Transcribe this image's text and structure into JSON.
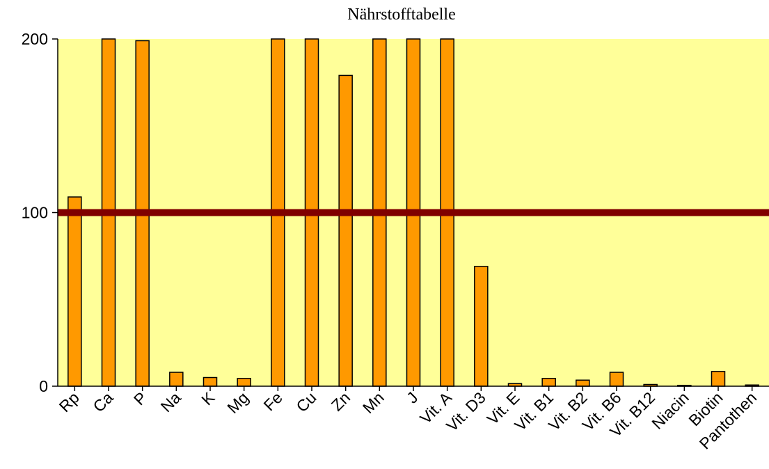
{
  "chart_data": {
    "type": "bar",
    "title": "Nährstofftabelle",
    "xlabel": "",
    "ylabel": "",
    "ylim": [
      0,
      200
    ],
    "yticks": [
      0,
      100,
      200
    ],
    "categories": [
      "Rp",
      "Ca",
      "P",
      "Na",
      "K",
      "Mg",
      "Fe",
      "Cu",
      "Zn",
      "Mn",
      "J",
      "Vit. A",
      "Vit. D3",
      "Vit. E",
      "Vit. B1",
      "Vit. B2",
      "Vit. B6",
      "Vit. B12",
      "Niacin",
      "Biotin",
      "Pantothen"
    ],
    "values": [
      109,
      200,
      199,
      8,
      5,
      4.5,
      200,
      200,
      179,
      200,
      200,
      200,
      69,
      1.5,
      4.5,
      3.5,
      8,
      1,
      0.5,
      8.5,
      0.7
    ],
    "reference_line": 100,
    "grid": false,
    "legend": "none",
    "colors": {
      "plot_background": "#FFFF99",
      "bar_fill": "#FF9900",
      "bar_stroke": "#000000",
      "reference_line": "#800000",
      "axis": "#000000"
    }
  }
}
